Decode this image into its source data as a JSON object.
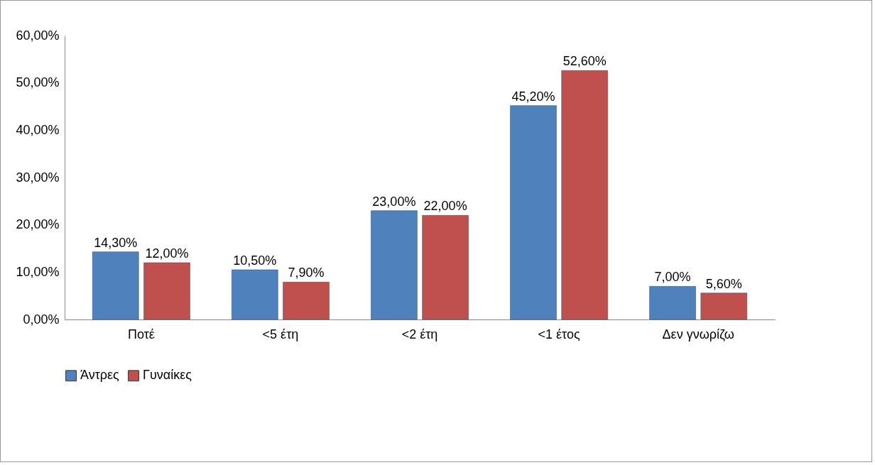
{
  "chart_data": {
    "type": "bar",
    "categories": [
      "Ποτέ",
      "<5 έτη",
      "<2 έτη",
      "<1 έτος",
      "Δεν γνωρίζω"
    ],
    "ylim": [
      0,
      60
    ],
    "yticks": [
      {
        "value": 0,
        "label": "0,00%"
      },
      {
        "value": 10,
        "label": "10,00%"
      },
      {
        "value": 20,
        "label": "20,00%"
      },
      {
        "value": 30,
        "label": "30,00%"
      },
      {
        "value": 40,
        "label": "40,00%"
      },
      {
        "value": 50,
        "label": "50,00%"
      },
      {
        "value": 60,
        "label": "60,00%"
      }
    ],
    "legend": "bottom",
    "series": [
      {
        "name": "Άντρες",
        "color": "#4f81bd",
        "values": [
          14.3,
          10.5,
          23.0,
          45.2,
          7.0
        ],
        "value_labels": [
          "14,30%",
          "10,50%",
          "23,00%",
          "45,20%",
          "7,00%"
        ]
      },
      {
        "name": "Γυναίκες",
        "color": "#c0504d",
        "values": [
          12.0,
          7.9,
          22.0,
          52.6,
          5.6
        ],
        "value_labels": [
          "12,00%",
          "7,90%",
          "22,00%",
          "52,60%",
          "5,60%"
        ]
      }
    ]
  }
}
